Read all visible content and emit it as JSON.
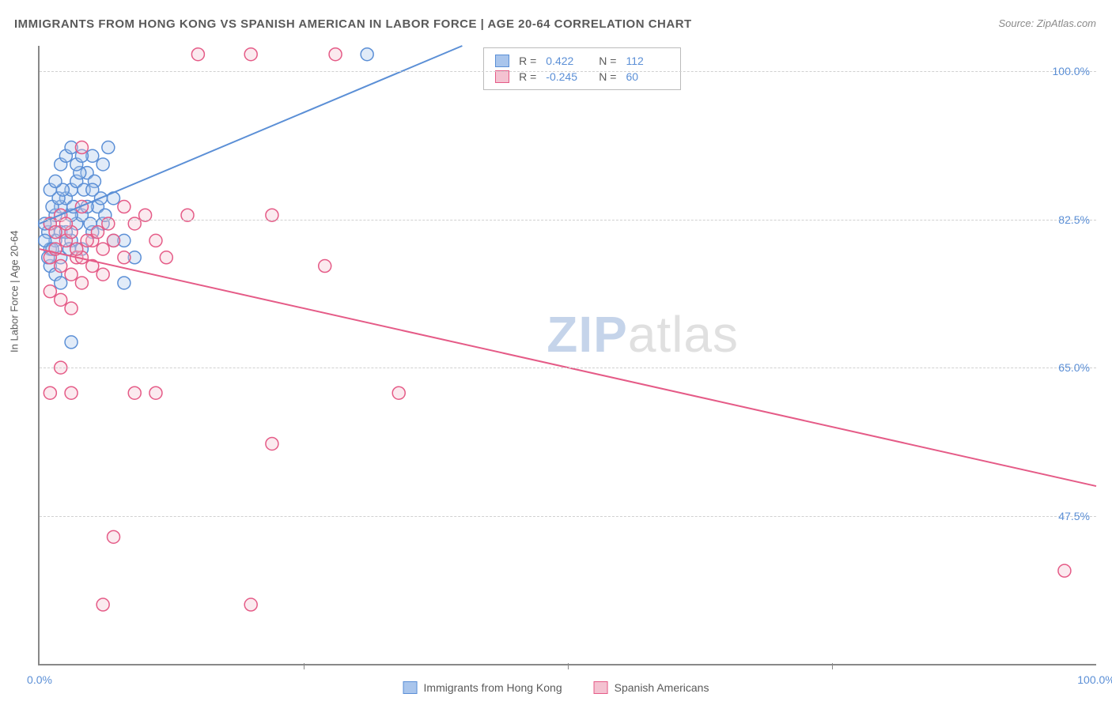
{
  "title": "IMMIGRANTS FROM HONG KONG VS SPANISH AMERICAN IN LABOR FORCE | AGE 20-64 CORRELATION CHART",
  "source": "Source: ZipAtlas.com",
  "ylabel": "In Labor Force | Age 20-64",
  "watermark_a": "ZIP",
  "watermark_b": "atlas",
  "chart": {
    "type": "scatter",
    "background_color": "#ffffff",
    "grid_color": "#d0d0d0",
    "axis_color": "#888888",
    "tick_label_color": "#5b8fd6",
    "xlim": [
      0,
      100
    ],
    "ylim": [
      30,
      103
    ],
    "yticks": [
      47.5,
      65.0,
      82.5,
      100.0
    ],
    "ytick_labels": [
      "47.5%",
      "65.0%",
      "82.5%",
      "100.0%"
    ],
    "xticks": [
      0,
      100
    ],
    "xtick_labels": [
      "0.0%",
      "100.0%"
    ],
    "x_minor_ticks": [
      25,
      50,
      75
    ],
    "marker_radius": 8,
    "line_width": 2
  },
  "series": [
    {
      "label": "Immigrants from Hong Kong",
      "color_fill": "#a9c5ec",
      "color_stroke": "#5b8fd6",
      "R": "0.422",
      "N": "112",
      "trend": {
        "x1": 0,
        "y1": 82,
        "x2": 40,
        "y2": 103
      },
      "points": [
        [
          1,
          82
        ],
        [
          1.5,
          83
        ],
        [
          2,
          81
        ],
        [
          2,
          84
        ],
        [
          2.5,
          85
        ],
        [
          3,
          80
        ],
        [
          3,
          86
        ],
        [
          3.5,
          82
        ],
        [
          3.5,
          87
        ],
        [
          4,
          79
        ],
        [
          4,
          83
        ],
        [
          4.5,
          88
        ],
        [
          5,
          81
        ],
        [
          5,
          90
        ],
        [
          5.5,
          84
        ],
        [
          6,
          82
        ],
        [
          6,
          89
        ],
        [
          6.5,
          91
        ],
        [
          7,
          85
        ],
        [
          7,
          80
        ],
        [
          1,
          79
        ],
        [
          1.5,
          80
        ],
        [
          2,
          78
        ],
        [
          2.5,
          81
        ],
        [
          3,
          83
        ],
        [
          0.8,
          81
        ],
        [
          0.5,
          82
        ],
        [
          1.2,
          84
        ],
        [
          1.8,
          85
        ],
        [
          2.2,
          86
        ],
        [
          2.8,
          79
        ],
        [
          3.2,
          84
        ],
        [
          3.8,
          88
        ],
        [
          4.2,
          86
        ],
        [
          4.8,
          82
        ],
        [
          5.2,
          87
        ],
        [
          5.8,
          85
        ],
        [
          6.2,
          83
        ],
        [
          1,
          86
        ],
        [
          1.5,
          87
        ],
        [
          2,
          89
        ],
        [
          2.5,
          90
        ],
        [
          3,
          91
        ],
        [
          3.5,
          89
        ],
        [
          4,
          90
        ],
        [
          4.5,
          84
        ],
        [
          5,
          86
        ],
        [
          1,
          77
        ],
        [
          1.5,
          76
        ],
        [
          2,
          75
        ],
        [
          0.5,
          80
        ],
        [
          0.8,
          78
        ],
        [
          1.2,
          79
        ],
        [
          8,
          80
        ],
        [
          8,
          75
        ],
        [
          9,
          78
        ],
        [
          3,
          68
        ],
        [
          31,
          102
        ]
      ]
    },
    {
      "label": "Spanish Americans",
      "color_fill": "#f4c2d1",
      "color_stroke": "#e55b87",
      "R": "-0.245",
      "N": "60",
      "trend": {
        "x1": 0,
        "y1": 79,
        "x2": 100,
        "y2": 51
      },
      "points": [
        [
          1,
          78
        ],
        [
          1.5,
          79
        ],
        [
          2,
          77
        ],
        [
          2.5,
          80
        ],
        [
          3,
          76
        ],
        [
          3.5,
          78
        ],
        [
          4,
          75
        ],
        [
          5,
          77
        ],
        [
          6,
          79
        ],
        [
          7,
          80
        ],
        [
          8,
          78
        ],
        [
          9,
          82
        ],
        [
          10,
          83
        ],
        [
          11,
          80
        ],
        [
          12,
          78
        ],
        [
          14,
          83
        ],
        [
          15,
          102
        ],
        [
          20,
          102
        ],
        [
          22,
          83
        ],
        [
          28,
          102
        ],
        [
          1,
          74
        ],
        [
          2,
          73
        ],
        [
          3,
          72
        ],
        [
          4,
          78
        ],
        [
          5,
          80
        ],
        [
          6,
          76
        ],
        [
          8,
          84
        ],
        [
          4,
          91
        ],
        [
          2,
          65
        ],
        [
          3,
          62
        ],
        [
          9,
          62
        ],
        [
          11,
          62
        ],
        [
          27,
          77
        ],
        [
          34,
          62
        ],
        [
          22,
          56
        ],
        [
          1,
          62
        ],
        [
          7,
          45
        ],
        [
          6,
          37
        ],
        [
          20,
          37
        ],
        [
          97,
          41
        ],
        [
          1,
          82
        ],
        [
          2,
          83
        ],
        [
          3,
          81
        ],
        [
          4,
          84
        ],
        [
          1.5,
          81
        ],
        [
          2.5,
          82
        ],
        [
          3.5,
          79
        ],
        [
          4.5,
          80
        ],
        [
          5.5,
          81
        ],
        [
          6.5,
          82
        ]
      ]
    }
  ],
  "legend_box": {
    "rows": [
      {
        "swatch": 0,
        "r_label": "R =",
        "r_val": "0.422",
        "n_label": "N =",
        "n_val": "112"
      },
      {
        "swatch": 1,
        "r_label": "R =",
        "r_val": "-0.245",
        "n_label": "N =",
        "n_val": "60"
      }
    ]
  }
}
